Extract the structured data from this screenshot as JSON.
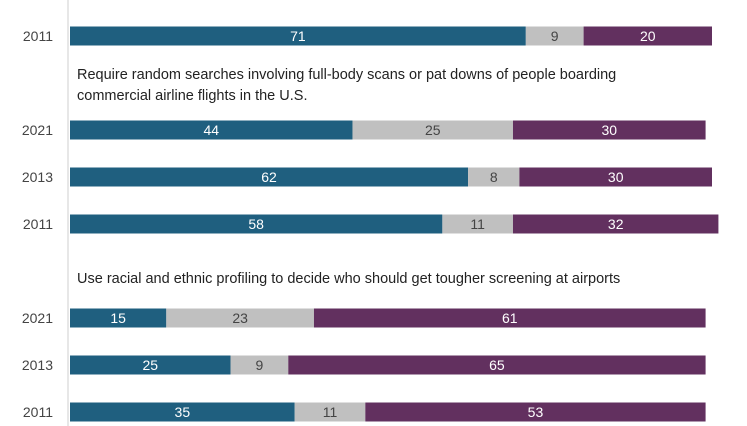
{
  "colors": {
    "segment1": "#1f5f7f",
    "segment2": "#c0c0c0",
    "segment3": "#62305f",
    "axis": "#cfcfcf"
  },
  "chart_data": {
    "type": "bar",
    "orientation": "horizontal",
    "stacked": true,
    "xlim": [
      0,
      100
    ],
    "grid": false,
    "groups": [
      {
        "question_lines": [],
        "rows": [
          {
            "year": "2011",
            "values": [
              71,
              9,
              20
            ]
          }
        ]
      },
      {
        "question_lines": [
          "Require random searches involving full-body scans or pat downs of people boarding",
          "commercial airline flights in the U.S."
        ],
        "rows": [
          {
            "year": "2021",
            "values": [
              44,
              25,
              30
            ]
          },
          {
            "year": "2013",
            "values": [
              62,
              8,
              30
            ]
          },
          {
            "year": "2011",
            "values": [
              58,
              11,
              32
            ]
          }
        ]
      },
      {
        "question_lines": [
          "Use racial and ethnic profiling to decide who should get tougher screening at airports"
        ],
        "rows": [
          {
            "year": "2021",
            "values": [
              15,
              23,
              61
            ]
          },
          {
            "year": "2013",
            "values": [
              25,
              9,
              65
            ]
          },
          {
            "year": "2011",
            "values": [
              35,
              11,
              53
            ]
          }
        ]
      }
    ]
  }
}
